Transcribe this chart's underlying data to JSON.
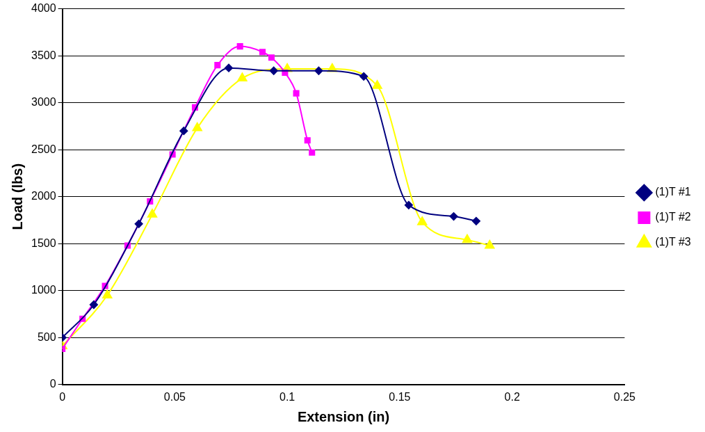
{
  "chart_data": {
    "type": "line",
    "xlabel": "Extension (in)",
    "ylabel": "Load (lbs)",
    "xlim": [
      0,
      0.25
    ],
    "xticks": [
      0,
      0.05,
      0.1,
      0.15,
      0.2,
      0.25
    ],
    "ylim": [
      0,
      4000
    ],
    "yticks": [
      0,
      500,
      1000,
      1500,
      2000,
      2500,
      3000,
      3500,
      4000
    ],
    "grid": "y",
    "legend": "right",
    "series": [
      {
        "name": "(1)T #1",
        "color": "#000080",
        "marker": "diamond",
        "x": [
          0,
          0.014,
          0.034,
          0.054,
          0.074,
          0.094,
          0.114,
          0.134,
          0.154,
          0.174,
          0.184
        ],
        "values": [
          500,
          850,
          1710,
          2700,
          3370,
          3340,
          3340,
          3280,
          1910,
          1790,
          1740
        ]
      },
      {
        "name": "(1)T #2",
        "color": "#ff00ff",
        "marker": "square",
        "x": [
          0,
          0.009,
          0.019,
          0.029,
          0.039,
          0.049,
          0.059,
          0.069,
          0.079,
          0.089,
          0.093,
          0.099,
          0.104,
          0.109,
          0.111
        ],
        "values": [
          380,
          700,
          1050,
          1480,
          1950,
          2450,
          2950,
          3400,
          3600,
          3540,
          3480,
          3320,
          3100,
          2600,
          2470
        ]
      },
      {
        "name": "(1)T #3",
        "color": "#ffff00",
        "marker": "triangle",
        "x": [
          0,
          0.02,
          0.04,
          0.06,
          0.08,
          0.1,
          0.12,
          0.14,
          0.16,
          0.18,
          0.19
        ],
        "values": [
          410,
          950,
          1810,
          2730,
          3260,
          3360,
          3360,
          3180,
          1730,
          1540,
          1480
        ]
      }
    ]
  }
}
